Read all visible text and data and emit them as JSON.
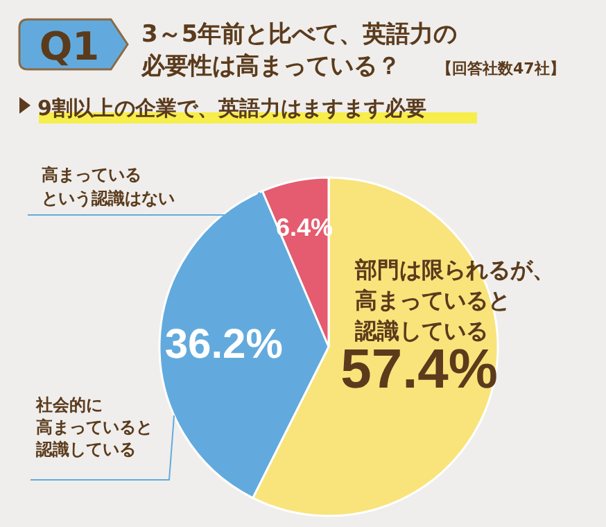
{
  "chart_data": {
    "type": "pie",
    "title": "3～5年前と比べて、英語力の必要性は高まっている？",
    "subtitle": "9割以上の企業で、英語力はますます必要",
    "annotations": [
      "Q1",
      "【回答社数47社】"
    ],
    "categories": [
      "部門は限られるが、高まっていると認識している",
      "社会的に高まっていると認識している",
      "高まっているという認識はない"
    ],
    "values": [
      57.4,
      36.2,
      6.4
    ],
    "colors": [
      "#f9e47c",
      "#62aadd",
      "#e55b6f"
    ],
    "value_labels": [
      "57.4%",
      "36.2%",
      "6.4%"
    ]
  }
}
